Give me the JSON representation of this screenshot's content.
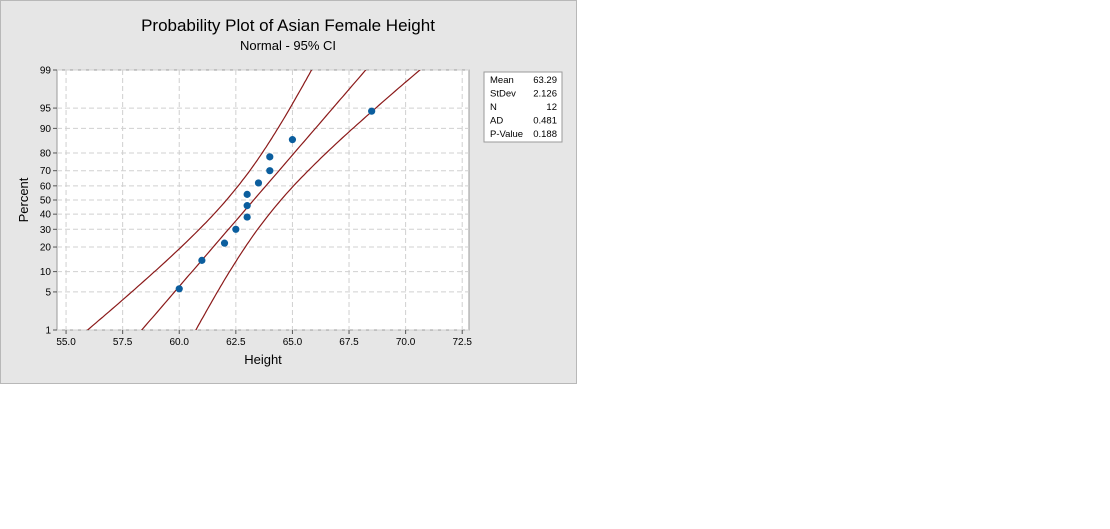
{
  "chart_data": {
    "type": "scatter",
    "title": "Probability Plot of Asian Female Height",
    "subtitle": "Normal - 95% CI",
    "xlabel": "Height",
    "ylabel": "Percent",
    "xlim": [
      54.6,
      72.8
    ],
    "x_ticks": [
      55.0,
      57.5,
      60.0,
      62.5,
      65.0,
      67.5,
      70.0,
      72.5
    ],
    "x_tick_labels": [
      "55.0",
      "57.5",
      "60.0",
      "62.5",
      "65.0",
      "67.5",
      "70.0",
      "72.5"
    ],
    "y_scale": "normal-probability",
    "ylim": [
      1,
      99
    ],
    "y_ticks": [
      1,
      5,
      10,
      20,
      30,
      40,
      50,
      60,
      70,
      80,
      90,
      95,
      99
    ],
    "y_tick_labels": [
      "1",
      "5",
      "10",
      "20",
      "30",
      "40",
      "50",
      "60",
      "70",
      "80",
      "90",
      "95",
      "99"
    ],
    "grid": true,
    "points": [
      {
        "x": 60.0,
        "y": 5.6
      },
      {
        "x": 61.0,
        "y": 14.0
      },
      {
        "x": 62.0,
        "y": 22.0
      },
      {
        "x": 62.5,
        "y": 30.0
      },
      {
        "x": 63.0,
        "y": 38.0
      },
      {
        "x": 63.0,
        "y": 46.0
      },
      {
        "x": 63.0,
        "y": 54.0
      },
      {
        "x": 63.5,
        "y": 62.0
      },
      {
        "x": 64.0,
        "y": 70.0
      },
      {
        "x": 64.0,
        "y": 78.0
      },
      {
        "x": 65.0,
        "y": 86.0
      },
      {
        "x": 68.5,
        "y": 94.4
      }
    ],
    "fit": {
      "mean": 63.29,
      "stdev": 2.126,
      "n": 12
    },
    "colors": {
      "points": "#0b5e9e",
      "lines": "#8b1a1a",
      "grid": "#d0d0d0"
    },
    "stats_legend": {
      "position": "right",
      "rows": [
        {
          "label": "Mean",
          "value": "63.29"
        },
        {
          "label": "StDev",
          "value": "2.126"
        },
        {
          "label": "N",
          "value": "12"
        },
        {
          "label": "AD",
          "value": "0.481"
        },
        {
          "label": "P-Value",
          "value": "0.188"
        }
      ]
    }
  }
}
